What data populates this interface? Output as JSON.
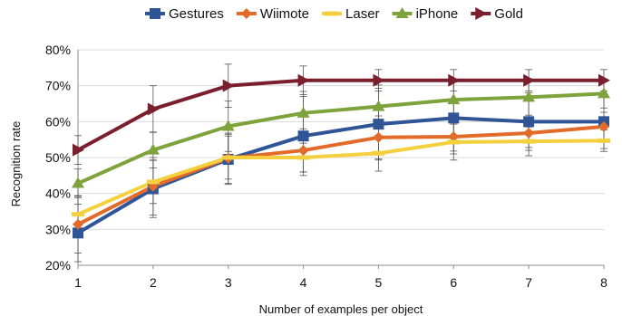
{
  "chart_data": {
    "type": "line",
    "xlabel": "Number of examples per object",
    "ylabel": "Recognition rate",
    "x": [
      1,
      2,
      3,
      4,
      5,
      6,
      7,
      8
    ],
    "xlim": [
      1,
      8
    ],
    "ylim": [
      0.2,
      0.8
    ],
    "yticks": [
      "20%",
      "30%",
      "40%",
      "50%",
      "60%",
      "70%",
      "80%"
    ],
    "ytick_values": [
      0.2,
      0.3,
      0.4,
      0.5,
      0.6,
      0.7,
      0.8
    ],
    "xticks": [
      "1",
      "2",
      "3",
      "4",
      "5",
      "6",
      "7",
      "8"
    ],
    "grid": "horizontal",
    "legend_position": "top",
    "series": [
      {
        "name": "Gestures",
        "color": "#2F5597",
        "marker": "square",
        "values": [
          0.29,
          0.413,
          0.495,
          0.56,
          0.593,
          0.61,
          0.6,
          0.6
        ],
        "errors": [
          0.08,
          0.08,
          0.07,
          0.11,
          0.1,
          0.1,
          0.08,
          0.075
        ]
      },
      {
        "name": "Wiimote",
        "color": "#E26B2A",
        "marker": "diamond",
        "values": [
          0.314,
          0.42,
          0.498,
          0.52,
          0.556,
          0.558,
          0.568,
          0.586
        ],
        "errors": [
          0.08,
          0.08,
          0.07,
          0.06,
          0.06,
          0.04,
          0.04,
          0.04
        ]
      },
      {
        "name": "Laser",
        "color": "#F4D03F",
        "marker": "dash",
        "values": [
          0.342,
          0.432,
          0.5,
          0.5,
          0.512,
          0.543,
          0.545,
          0.547
        ],
        "errors": [
          0.05,
          0.06,
          0.06,
          0.04,
          0.05,
          0.05,
          0.04,
          0.03
        ]
      },
      {
        "name": "iPhone",
        "color": "#7EA33C",
        "marker": "triangle",
        "values": [
          0.428,
          0.521,
          0.587,
          0.624,
          0.642,
          0.661,
          0.668,
          0.678
        ],
        "errors": [
          0.04,
          0.05,
          0.07,
          0.06,
          0.06,
          0.05,
          0.05,
          0.04
        ]
      },
      {
        "name": "Gold",
        "color": "#7B1F2E",
        "marker": "arrow-right",
        "values": [
          0.521,
          0.635,
          0.7,
          0.715,
          0.715,
          0.715,
          0.715,
          0.715
        ],
        "errors": [
          0.04,
          0.065,
          0.06,
          0.04,
          0.03,
          0.03,
          0.03,
          0.03
        ]
      }
    ]
  }
}
